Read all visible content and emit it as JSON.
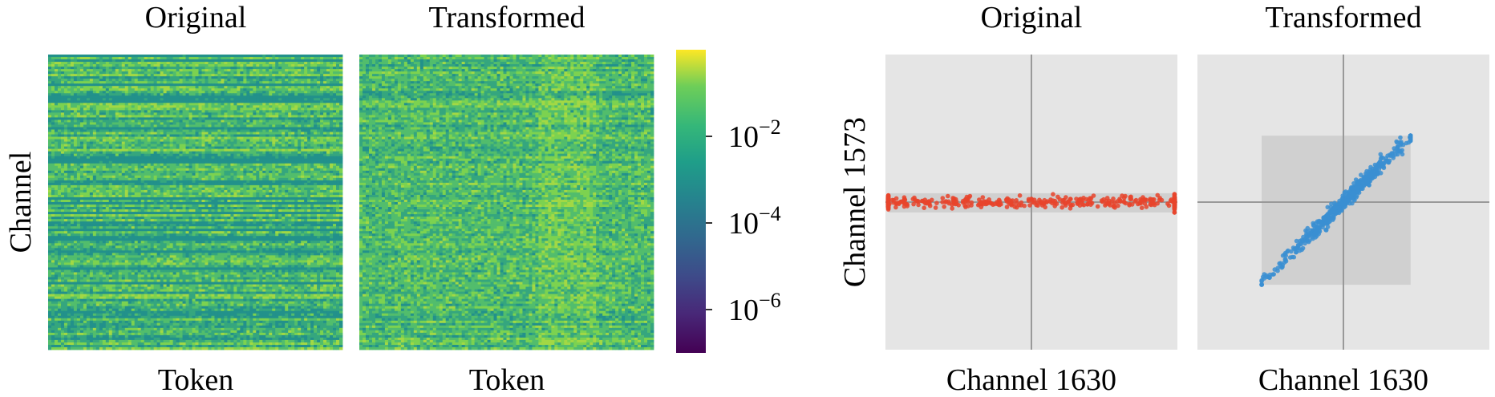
{
  "chart_data": [
    {
      "type": "heatmap",
      "panel": "left",
      "subplots": [
        {
          "title": "Original",
          "xlabel": "Token"
        },
        {
          "title": "Transformed",
          "xlabel": "Token"
        }
      ],
      "ylabel": "Channel",
      "colormap": "viridis",
      "colorbar": {
        "scale": "log",
        "range": [
          1e-07,
          1
        ],
        "ticks": [
          {
            "value": 0.01,
            "base": "10",
            "exp": "−2"
          },
          {
            "value": 0.0001,
            "base": "10",
            "exp": "−4"
          },
          {
            "value": 1e-06,
            "base": "10",
            "exp": "−6"
          }
        ]
      }
    },
    {
      "type": "scatter",
      "panel": "right",
      "ylabel": "Channel 1573",
      "grid": false,
      "subplots": [
        {
          "title": "Original",
          "xlabel": "Channel 1630",
          "color": "#e8442c",
          "xlim": [
            -1,
            1
          ],
          "ylim": [
            -1,
            1
          ],
          "range_box": {
            "x": [
              -0.98,
              0.98
            ],
            "y": [
              -0.07,
              0.06
            ]
          },
          "spread": {
            "x": 0.86,
            "y": 0.02,
            "correlation": 0
          }
        },
        {
          "title": "Transformed",
          "xlabel": "Channel 1630",
          "color": "#3b8fd2",
          "xlim": [
            -1,
            1
          ],
          "ylim": [
            -1,
            1
          ],
          "range_box": {
            "x": [
              -0.56,
              0.46
            ],
            "y": [
              -0.56,
              0.45
            ]
          },
          "spread": {
            "x": 0.3,
            "y": 0.3,
            "correlation": 0.98
          }
        }
      ]
    }
  ]
}
